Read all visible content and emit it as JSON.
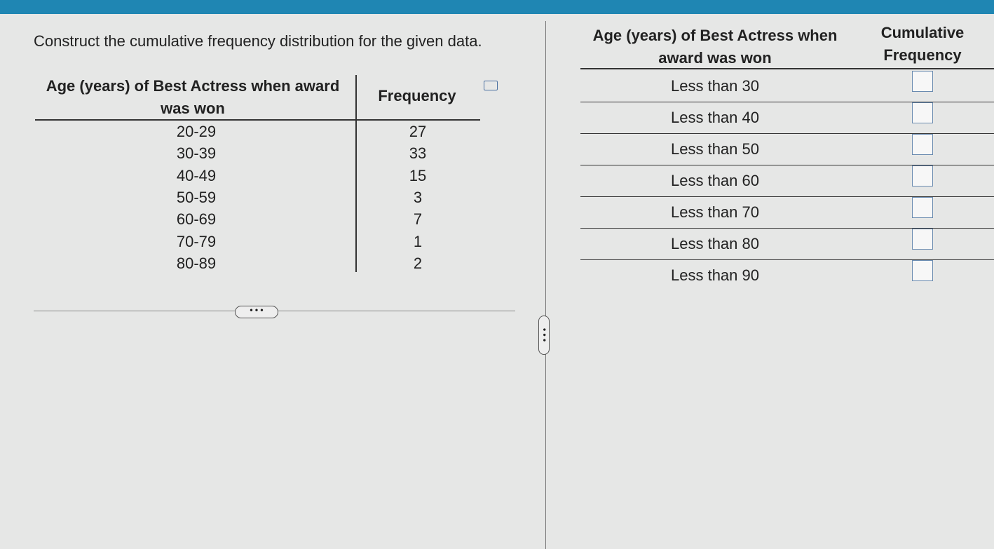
{
  "question": "Construct the cumulative frequency distribution for the given data.",
  "source_table": {
    "headers": [
      "Age (years) of Best Actress when award was won",
      "Frequency"
    ],
    "rows": [
      [
        "20-29",
        27
      ],
      [
        "30-39",
        33
      ],
      [
        "40-49",
        15
      ],
      [
        "50-59",
        3
      ],
      [
        "60-69",
        7
      ],
      [
        "70-79",
        1
      ],
      [
        "80-89",
        2
      ]
    ]
  },
  "answer_table": {
    "headers": [
      "Age (years) of Best Actress when award was won",
      "Cumulative Frequency"
    ],
    "rows": [
      "Less than 30",
      "Less than 40",
      "Less than 50",
      "Less than 60",
      "Less than 70",
      "Less than 80",
      "Less than 90"
    ]
  }
}
